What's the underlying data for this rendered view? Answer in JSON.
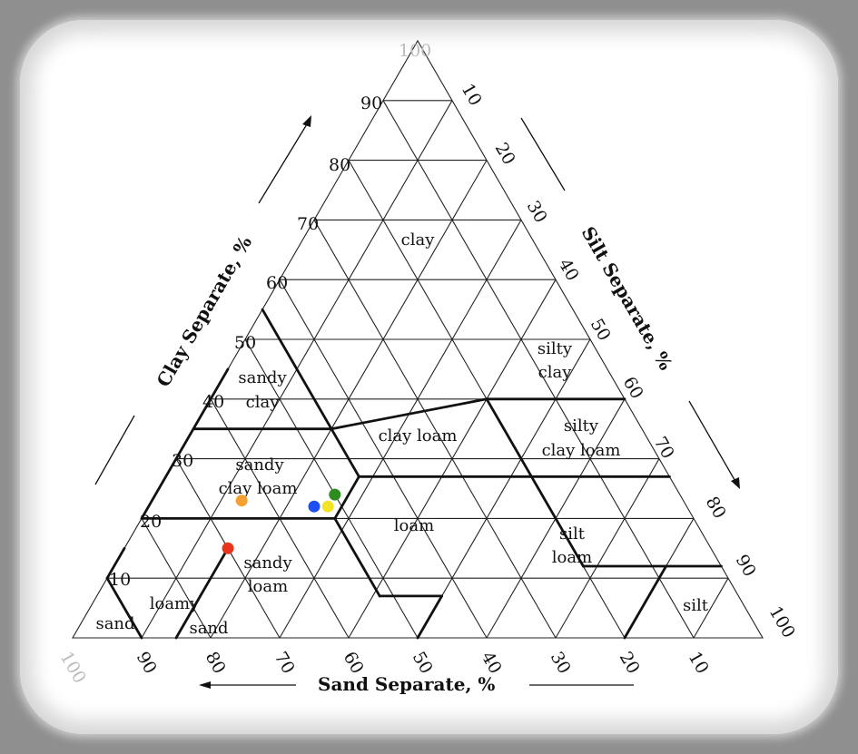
{
  "axes": {
    "clay_title": "Clay Separate, %",
    "silt_title": "Silt Separate, %",
    "sand_title": "Sand Separate, %",
    "clay_ticks": [
      "10",
      "20",
      "30",
      "40",
      "50",
      "60",
      "70",
      "80",
      "90",
      "100"
    ],
    "silt_ticks": [
      "10",
      "20",
      "30",
      "40",
      "50",
      "60",
      "70",
      "80",
      "90",
      "100"
    ],
    "sand_ticks": [
      "100",
      "90",
      "80",
      "70",
      "60",
      "50",
      "40",
      "30",
      "20",
      "10"
    ]
  },
  "regions": {
    "clay": "clay",
    "sandy_clay_1": "sandy",
    "sandy_clay_2": "clay",
    "silty_clay_1": "silty",
    "silty_clay_2": "clay",
    "clay_loam": "clay loam",
    "silty_clay_loam_1": "silty",
    "silty_clay_loam_2": "clay loam",
    "sandy_clay_loam_1": "sandy",
    "sandy_clay_loam_2": "clay loam",
    "loam": "loam",
    "silt_loam_1": "silt",
    "silt_loam_2": "loam",
    "sandy_loam_1": "sandy",
    "sandy_loam_2": "loam",
    "loamy_sand_1": "loamy",
    "loamy_sand_2": "sand",
    "sand": "sand",
    "silt": "silt"
  },
  "samples": [
    {
      "color": "#f5a030",
      "sand": 64,
      "clay": 23
    },
    {
      "color": "#e8341c",
      "sand": 70,
      "clay": 15
    },
    {
      "color": "#1e4ff0",
      "sand": 54,
      "clay": 22
    },
    {
      "color": "#f2e324",
      "sand": 52,
      "clay": 22
    },
    {
      "color": "#2e8c1e",
      "sand": 50,
      "clay": 24
    }
  ]
}
